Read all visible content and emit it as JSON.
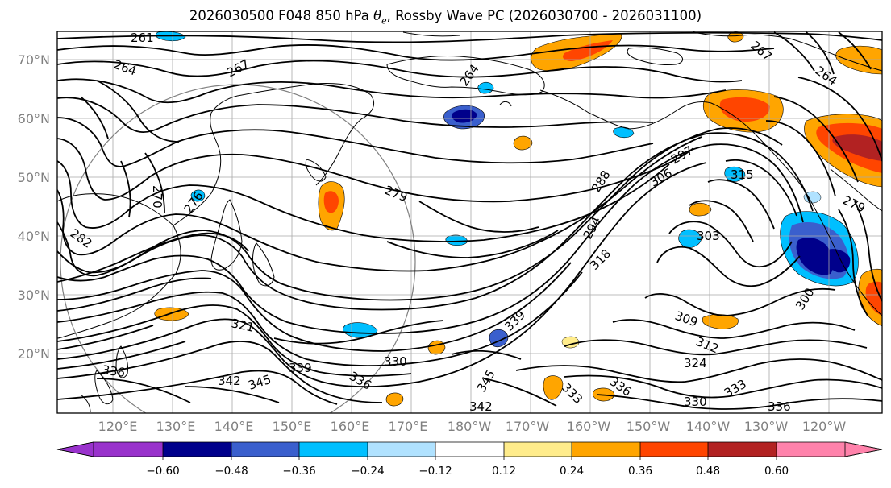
{
  "title_prefix": "2026030500 F048 850 hPa ",
  "title_theta": "θ",
  "title_sub": "e",
  "title_suffix": ", Rossby Wave PC (2026030700 - 2026031100)",
  "lat_labels": [
    "70°N",
    "60°N",
    "50°N",
    "40°N",
    "30°N",
    "20°N"
  ],
  "lon_labels": [
    "120°E",
    "130°E",
    "140°E",
    "150°E",
    "160°E",
    "170°E",
    "180°W",
    "170°W",
    "160°W",
    "150°W",
    "140°W",
    "130°W",
    "120°W"
  ],
  "contour_labels": [
    "261",
    "264",
    "267",
    "279",
    "264",
    "267",
    "264",
    "270",
    "276",
    "282",
    "279",
    "288",
    "294",
    "297",
    "306",
    "315",
    "318",
    "303",
    "300",
    "309",
    "312",
    "324",
    "330",
    "333",
    "336",
    "339",
    "342",
    "345",
    "336",
    "330",
    "333",
    "336",
    "342",
    "345",
    "339",
    "336",
    "321"
  ],
  "colorbar": {
    "ticks": [
      "−0.60",
      "−0.48",
      "−0.36",
      "−0.24",
      "−0.12",
      "0.12",
      "0.24",
      "0.36",
      "0.48",
      "0.60"
    ],
    "colors": [
      "#9932cc",
      "#00008b",
      "#3a5fcd",
      "#00bfff",
      "#b0e2ff",
      "#ffffff",
      "#ffec8b",
      "#ffa500",
      "#ff4500",
      "#b22222",
      "#ff82ab"
    ]
  },
  "palette": {
    "land": "#000000",
    "grid": "#a9a9a9",
    "circle": "#808080",
    "label": "#808080"
  }
}
